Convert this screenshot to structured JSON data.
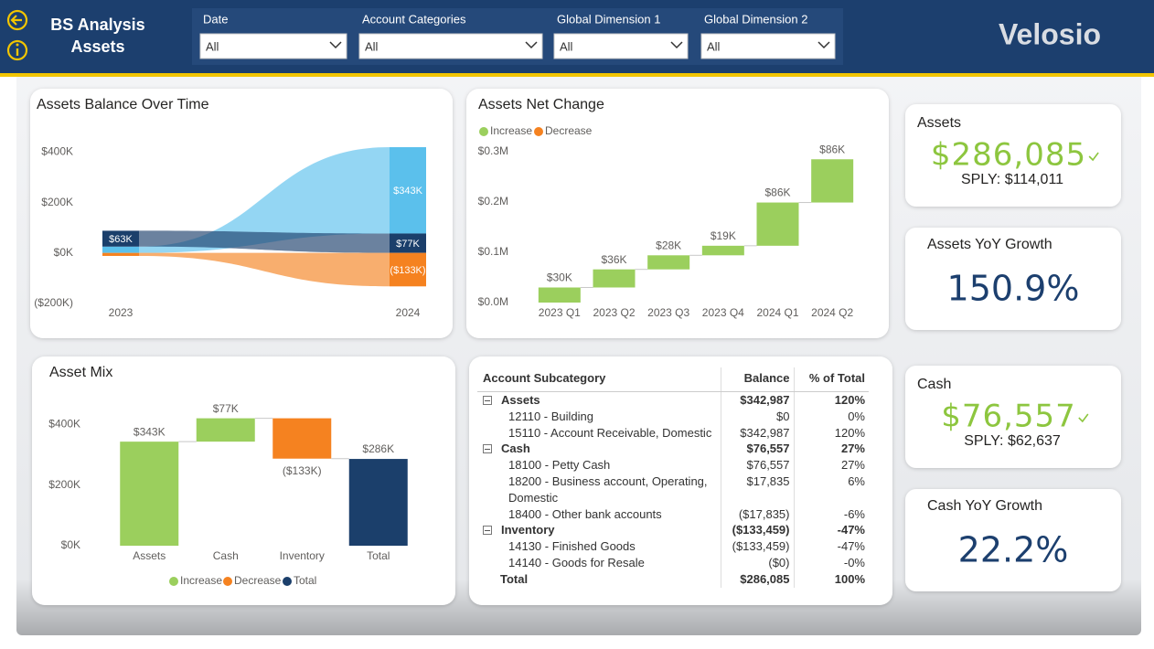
{
  "header": {
    "title": "BS Analysis",
    "subtitle": "Assets",
    "logo": "Velosio"
  },
  "filters": [
    {
      "label": "Date",
      "value": "All"
    },
    {
      "label": "Account Categories",
      "value": "All"
    },
    {
      "label": "Global Dimension 1",
      "value": "All"
    },
    {
      "label": "Global Dimension 2",
      "value": "All"
    }
  ],
  "chart_data": [
    {
      "type": "ribbon",
      "title": "Assets Balance Over Time",
      "categories": [
        "2023",
        "2024"
      ],
      "series": [
        {
          "color": "#5bc0ec",
          "values": [
            25,
            343
          ],
          "value_labels": [
            null,
            "$343K"
          ]
        },
        {
          "color": "#1b3f6b",
          "values": [
            63,
            77
          ],
          "value_labels": [
            "$63K",
            "$77K"
          ]
        },
        {
          "color": "#f58220",
          "values": [
            -12,
            -133
          ],
          "value_labels": [
            null,
            "($133K)"
          ]
        }
      ],
      "ylim": [
        -230,
        460
      ],
      "yticks": [
        {
          "value": -200,
          "label": "($200K)"
        },
        {
          "value": 0,
          "label": "$0K"
        },
        {
          "value": 200,
          "label": "$200K"
        },
        {
          "value": 400,
          "label": "$400K"
        }
      ]
    },
    {
      "type": "waterfall",
      "title": "Assets Net Change",
      "categories": [
        "2023 Q1",
        "2023 Q2",
        "2023 Q3",
        "2023 Q4",
        "2024 Q1",
        "2024 Q2"
      ],
      "values": [
        0.03,
        0.036,
        0.028,
        0.019,
        0.086,
        0.086
      ],
      "value_labels": [
        "$30K",
        "$36K",
        "$28K",
        "$19K",
        "$86K",
        "$86K"
      ],
      "legend": [
        {
          "name": "Increase",
          "color": "#9bcf5d"
        },
        {
          "name": "Decrease",
          "color": "#f58220"
        }
      ],
      "ylim": [
        0,
        0.31
      ],
      "yticks": [
        {
          "value": 0,
          "label": "$0.0M"
        },
        {
          "value": 0.1,
          "label": "$0.1M"
        },
        {
          "value": 0.2,
          "label": "$0.2M"
        },
        {
          "value": 0.3,
          "label": "$0.3M"
        }
      ]
    },
    {
      "type": "waterfall",
      "title": "Asset Mix",
      "categories": [
        "Assets",
        "Cash",
        "Inventory",
        "Total"
      ],
      "values": [
        343,
        77,
        -133,
        286
      ],
      "value_labels": [
        "$343K",
        "$77K",
        "($133K)",
        "$286K"
      ],
      "show_total": true,
      "legend": [
        {
          "name": "Increase",
          "color": "#9bcf5d"
        },
        {
          "name": "Decrease",
          "color": "#f58220"
        },
        {
          "name": "Total",
          "color": "#1b3f6b"
        }
      ],
      "ylim": [
        0,
        470
      ],
      "yticks": [
        {
          "value": 0,
          "label": "$0K"
        },
        {
          "value": 200,
          "label": "$200K"
        },
        {
          "value": 400,
          "label": "$400K"
        }
      ]
    }
  ],
  "table": {
    "columns": [
      "Account Subcategory",
      "Balance",
      "% of Total"
    ],
    "groups": [
      {
        "row": [
          "Assets",
          "$342,987",
          "120%"
        ],
        "rows": [
          [
            "12110 - Building",
            "$0",
            "0%"
          ],
          [
            "15110 - Account Receivable, Domestic",
            "$342,987",
            "120%"
          ]
        ]
      },
      {
        "row": [
          "Cash",
          "$76,557",
          "27%"
        ],
        "rows": [
          [
            "18100 - Petty Cash",
            "$76,557",
            "27%"
          ],
          [
            "18200 - Business account, Operating, Domestic",
            "$17,835",
            "6%"
          ],
          [
            "18400 - Other bank accounts",
            "($17,835)",
            "-6%"
          ]
        ]
      },
      {
        "row": [
          "Inventory",
          "($133,459)",
          "-47%"
        ],
        "rows": [
          [
            "14130 - Finished Goods",
            "($133,459)",
            "-47%"
          ],
          [
            "14140 - Goods for Resale",
            "($0)",
            "-0%"
          ]
        ]
      }
    ],
    "total": [
      "Total",
      "$286,085",
      "100%"
    ]
  },
  "cards": [
    {
      "title": "Assets",
      "value": "$286,085",
      "sub": "SPLY: $114,011"
    },
    {
      "title": "Assets YoY Growth",
      "value": "150.9%"
    },
    {
      "title": "Cash",
      "value": "$76,557",
      "sub": "SPLY: $62,637"
    },
    {
      "title": "Cash YoY Growth",
      "value": "22.2%"
    }
  ]
}
